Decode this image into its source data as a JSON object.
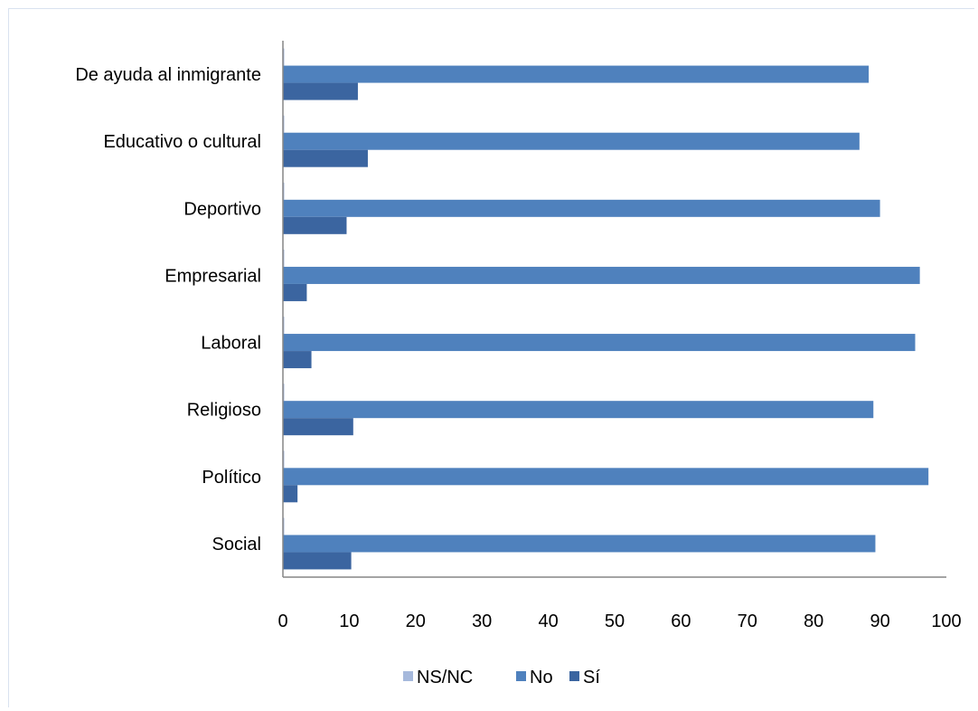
{
  "chart_data": {
    "type": "bar",
    "orientation": "horizontal",
    "categories": [
      "De ayuda al inmigrante",
      "Educativo o cultural",
      "Deportivo",
      "Empresarial",
      "Laboral",
      "Religioso",
      "Político",
      "Social"
    ],
    "series": [
      {
        "name": "NS/NC",
        "color": "#a6b9dc",
        "values": [
          0.2,
          0.2,
          0.2,
          0.2,
          0.2,
          0.2,
          0.2,
          0.2
        ]
      },
      {
        "name": "No",
        "color": "#4f81bd",
        "values": [
          88.3,
          86.9,
          90,
          96,
          95.3,
          89,
          97.3,
          89.3
        ]
      },
      {
        "name": "Sí",
        "color": "#3b65a0",
        "values": [
          11.3,
          12.8,
          9.6,
          3.6,
          4.3,
          10.6,
          2.2,
          10.3
        ]
      }
    ],
    "xlim": [
      0,
      100
    ],
    "xticks": [
      0,
      10,
      20,
      30,
      40,
      50,
      60,
      70,
      80,
      90,
      100
    ],
    "legend_position": "bottom",
    "grid": false
  }
}
